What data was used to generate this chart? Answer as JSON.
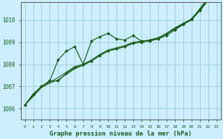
{
  "title": "Graphe pression niveau de la mer (hPa)",
  "bg_color": "#cceeff",
  "grid_color": "#99cccc",
  "line_color": "#1a5c1a",
  "marker_color": "#1a5c1a",
  "xlim": [
    -0.5,
    23.5
  ],
  "ylim": [
    1005.5,
    1010.8
  ],
  "yticks": [
    1006,
    1007,
    1008,
    1009,
    1010
  ],
  "xticks": [
    0,
    1,
    2,
    3,
    4,
    5,
    6,
    7,
    8,
    9,
    10,
    11,
    12,
    13,
    14,
    15,
    16,
    17,
    18,
    19,
    20,
    21,
    22,
    23
  ],
  "series_spike": [
    1006.15,
    1006.65,
    1007.0,
    1007.25,
    1008.2,
    1008.6,
    1008.8,
    1008.0,
    1009.05,
    1009.25,
    1009.4,
    1009.15,
    1009.1,
    1009.3,
    1009.05,
    1009.05,
    1009.15,
    1009.3,
    1009.55,
    1009.8,
    1010.05,
    1010.5,
    1011.05,
    1011.1
  ],
  "series_smooth1": [
    1006.15,
    1006.6,
    1007.0,
    1007.2,
    1007.4,
    1007.65,
    1007.9,
    1008.0,
    1008.2,
    1008.45,
    1008.65,
    1008.75,
    1008.85,
    1009.0,
    1009.05,
    1009.1,
    1009.2,
    1009.4,
    1009.65,
    1009.85,
    1010.05,
    1010.45,
    1010.95,
    1011.0
  ],
  "series_smooth2": [
    1006.15,
    1006.55,
    1006.95,
    1007.15,
    1007.3,
    1007.55,
    1007.8,
    1007.95,
    1008.15,
    1008.4,
    1008.6,
    1008.7,
    1008.8,
    1008.95,
    1009.0,
    1009.1,
    1009.2,
    1009.38,
    1009.6,
    1009.8,
    1010.0,
    1010.42,
    1010.88,
    1010.95
  ],
  "series_main": [
    1006.15,
    1006.65,
    1007.0,
    1007.25,
    1007.25,
    1007.6,
    1007.85,
    1008.0,
    1008.15,
    1008.4,
    1008.6,
    1008.7,
    1008.8,
    1008.95,
    1009.0,
    1009.08,
    1009.18,
    1009.37,
    1009.62,
    1009.83,
    1010.03,
    1010.44,
    1010.9,
    1010.98
  ]
}
